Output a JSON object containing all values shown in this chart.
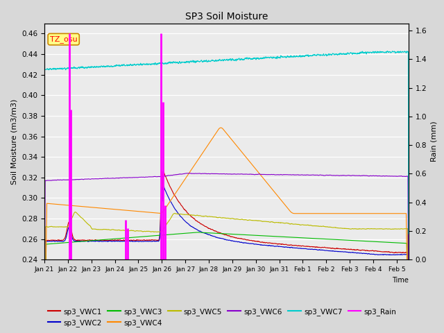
{
  "title": "SP3 Soil Moisture",
  "xlabel": "Time",
  "ylabel_left": "Soil Moisture (m3/m3)",
  "ylabel_right": "Rain (mm)",
  "annotation": "TZ_osu",
  "xlim_days": [
    0,
    15.5
  ],
  "ylim_left": [
    0.24,
    0.47
  ],
  "ylim_right": [
    0.0,
    1.65
  ],
  "x_ticks_labels": [
    "Jan 21",
    "Jan 22",
    "Jan 23",
    "Jan 24",
    "Jan 25",
    "Jan 26",
    "Jan 27",
    "Jan 28",
    "Jan 29",
    "Jan 30",
    "Jan 31",
    "Feb 1",
    "Feb 2",
    "Feb 3",
    "Feb 4",
    "Feb 5"
  ],
  "x_ticks_positions": [
    0,
    1,
    2,
    3,
    4,
    5,
    6,
    7,
    8,
    9,
    10,
    11,
    12,
    13,
    14,
    15
  ],
  "bg_color": "#d8d8d8",
  "plot_bg_color": "#ebebeb",
  "series_colors": {
    "VWC1": "#cc0000",
    "VWC2": "#0000cc",
    "VWC3": "#00bb00",
    "VWC4": "#ff8800",
    "VWC5": "#bbbb00",
    "VWC6": "#8800cc",
    "VWC7": "#00cccc",
    "Rain": "#ff00ff"
  },
  "yticks_left": [
    0.24,
    0.26,
    0.28,
    0.3,
    0.32,
    0.34,
    0.36,
    0.38,
    0.4,
    0.42,
    0.44,
    0.46
  ],
  "yticks_right": [
    0.0,
    0.2,
    0.4,
    0.6,
    0.8,
    1.0,
    1.2,
    1.4,
    1.6
  ],
  "rain_events": [
    [
      1.05,
      1.58
    ],
    [
      1.12,
      1.05
    ],
    [
      3.45,
      0.28
    ],
    [
      3.55,
      0.22
    ],
    [
      4.97,
      1.58
    ],
    [
      5.05,
      1.1
    ],
    [
      5.15,
      0.38
    ]
  ]
}
